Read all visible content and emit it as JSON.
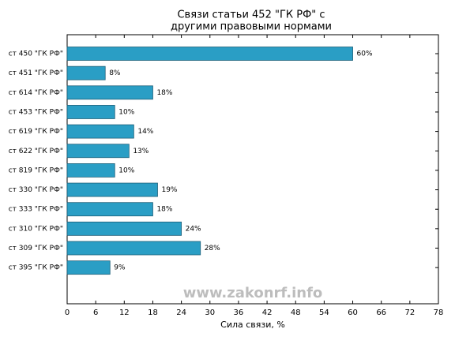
{
  "chart_data": {
    "type": "barh",
    "title": [
      "Связи статьи 452 \"ГК РФ\" с",
      "другими правовыми нормами"
    ],
    "xlabel": "Сила связи, %",
    "categories": [
      "ст 450 \"ГК РФ\"",
      "ст 451 \"ГК РФ\"",
      "ст 614 \"ГК РФ\"",
      "ст 453 \"ГК РФ\"",
      "ст 619 \"ГК РФ\"",
      "ст 622 \"ГК РФ\"",
      "ст 819 \"ГК РФ\"",
      "ст 330 \"ГК РФ\"",
      "ст 333 \"ГК РФ\"",
      "ст 310 \"ГК РФ\"",
      "ст 309 \"ГК РФ\"",
      "ст 395 \"ГК РФ\""
    ],
    "values": [
      60,
      8,
      18,
      10,
      14,
      13,
      10,
      19,
      18,
      24,
      28,
      9
    ],
    "value_labels": [
      "60%",
      "8%",
      "18%",
      "10%",
      "14%",
      "13%",
      "10%",
      "19%",
      "18%",
      "24%",
      "28%",
      "9%"
    ],
    "color": "#2a9ec5",
    "xlim": [
      0,
      78
    ],
    "xticks": [
      0,
      6,
      12,
      18,
      24,
      30,
      36,
      42,
      48,
      54,
      60,
      66,
      72,
      78
    ],
    "annotation": "www.zakonrf.info"
  }
}
